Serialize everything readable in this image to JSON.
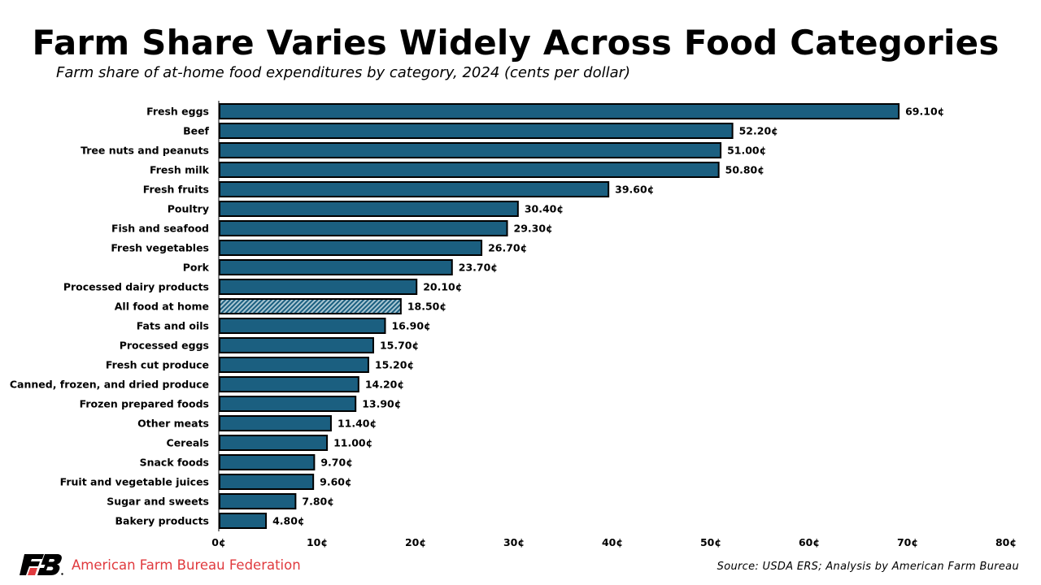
{
  "chart_data": {
    "type": "bar",
    "orientation": "horizontal",
    "title": "Farm Share Varies Widely Across Food Categories",
    "subtitle": "Farm share of at-home food expenditures by category, 2024 (cents per dollar)",
    "xlabel": "",
    "ylabel": "",
    "xlim": [
      0,
      80
    ],
    "unit_suffix": "¢",
    "value_decimals": 2,
    "grid": false,
    "legend": "none",
    "x_ticks": [
      0,
      10,
      20,
      30,
      40,
      50,
      60,
      70,
      80
    ],
    "x_tick_labels": [
      "0¢",
      "10¢",
      "20¢",
      "30¢",
      "40¢",
      "50¢",
      "60¢",
      "70¢",
      "80¢"
    ],
    "categories": [
      "Fresh eggs",
      "Beef",
      "Tree nuts and peanuts",
      "Fresh milk",
      "Fresh fruits",
      "Poultry",
      "Fish and seafood",
      "Fresh vegetables",
      "Pork",
      "Processed dairy products",
      "All food at home",
      "Fats and oils",
      "Processed eggs",
      "Fresh cut produce",
      "Canned, frozen, and dried produce",
      "Frozen prepared foods",
      "Other meats",
      "Cereals",
      "Snack foods",
      "Fruit and vegetable juices",
      "Sugar and sweets",
      "Bakery products"
    ],
    "values": [
      69.1,
      52.2,
      51.0,
      50.8,
      39.6,
      30.4,
      29.3,
      26.7,
      23.7,
      20.1,
      18.5,
      16.9,
      15.7,
      15.2,
      14.2,
      13.9,
      11.4,
      11.0,
      9.7,
      9.6,
      7.8,
      4.8
    ],
    "value_labels": [
      "69.10¢",
      "52.20¢",
      "51.00¢",
      "50.80¢",
      "39.60¢",
      "30.40¢",
      "29.30¢",
      "26.70¢",
      "23.70¢",
      "20.10¢",
      "18.50¢",
      "16.90¢",
      "15.70¢",
      "15.20¢",
      "14.20¢",
      "13.90¢",
      "11.40¢",
      "11.00¢",
      "9.70¢",
      "9.60¢",
      "7.80¢",
      "4.80¢"
    ],
    "highlighted_category": "All food at home",
    "colors": {
      "bar_fill": "#1b5f80",
      "bar_border": "#000000",
      "highlight_stripe_light": "#a9c6d2",
      "highlight_stripe_dark": "#1b5f80"
    }
  },
  "footer": {
    "brand_name": "American Farm Bureau Federation",
    "brand_color": "#e03a3e",
    "logo_icon": "fb-logo-icon",
    "source": "Source: USDA ERS; Analysis by American Farm Bureau"
  }
}
